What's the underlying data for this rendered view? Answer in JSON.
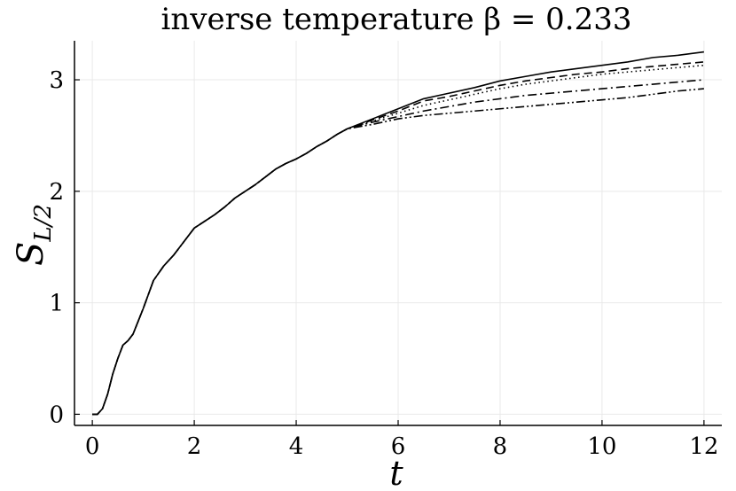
{
  "chart_data": {
    "type": "line",
    "title": "inverse temperature β = 0.233",
    "xlabel": "t",
    "ylabel_main": "S",
    "ylabel_sub": "L/2",
    "xlim": [
      -0.35,
      12.35
    ],
    "ylim": [
      -0.1,
      3.35
    ],
    "x_ticks": [
      0,
      2,
      4,
      6,
      8,
      10,
      12
    ],
    "y_ticks": [
      0,
      1,
      2,
      3
    ],
    "x_tick_labels": [
      "0",
      "2",
      "4",
      "6",
      "8",
      "10",
      "12"
    ],
    "y_tick_labels": [
      "0",
      "1",
      "2",
      "3"
    ],
    "grid": true,
    "legend": "none",
    "common_x": [
      0,
      0.1,
      0.2,
      0.3,
      0.4,
      0.5,
      0.6,
      0.7,
      0.8,
      1.0,
      1.2,
      1.4,
      1.6,
      1.8,
      2.0,
      2.2,
      2.4,
      2.6,
      2.8,
      3.0,
      3.2,
      3.4,
      3.6,
      3.8,
      4.0,
      4.2,
      4.4,
      4.6,
      4.8,
      5.0
    ],
    "common_y": [
      0.0,
      0.0,
      0.05,
      0.18,
      0.36,
      0.5,
      0.62,
      0.66,
      0.72,
      0.95,
      1.2,
      1.33,
      1.43,
      1.55,
      1.67,
      1.73,
      1.79,
      1.86,
      1.94,
      2.0,
      2.06,
      2.13,
      2.2,
      2.25,
      2.29,
      2.34,
      2.4,
      2.45,
      2.51,
      2.56
    ],
    "tail_x": [
      5.0,
      5.5,
      6.0,
      6.5,
      7.0,
      7.5,
      8.0,
      8.5,
      9.0,
      9.5,
      10.0,
      10.5,
      11.0,
      11.5,
      12.0
    ],
    "series": [
      {
        "dash": "solid",
        "tail_y": [
          2.56,
          2.65,
          2.74,
          2.83,
          2.88,
          2.93,
          2.99,
          3.03,
          3.07,
          3.1,
          3.13,
          3.16,
          3.2,
          3.22,
          3.25
        ]
      },
      {
        "dash": "dashed",
        "tail_y": [
          2.56,
          2.64,
          2.72,
          2.81,
          2.85,
          2.9,
          2.95,
          2.99,
          3.02,
          3.05,
          3.07,
          3.1,
          3.12,
          3.14,
          3.16
        ]
      },
      {
        "dash": "dotted",
        "tail_y": [
          2.56,
          2.63,
          2.7,
          2.77,
          2.82,
          2.87,
          2.92,
          2.96,
          2.99,
          3.02,
          3.05,
          3.07,
          3.09,
          3.11,
          3.13
        ]
      },
      {
        "dash": "dashdot",
        "tail_y": [
          2.56,
          2.62,
          2.67,
          2.72,
          2.76,
          2.8,
          2.83,
          2.86,
          2.88,
          2.9,
          2.92,
          2.94,
          2.96,
          2.98,
          3.0
        ]
      },
      {
        "dash": "dashdotdot",
        "tail_y": [
          2.55,
          2.6,
          2.65,
          2.68,
          2.7,
          2.72,
          2.74,
          2.76,
          2.78,
          2.8,
          2.82,
          2.84,
          2.87,
          2.9,
          2.92
        ]
      }
    ]
  }
}
